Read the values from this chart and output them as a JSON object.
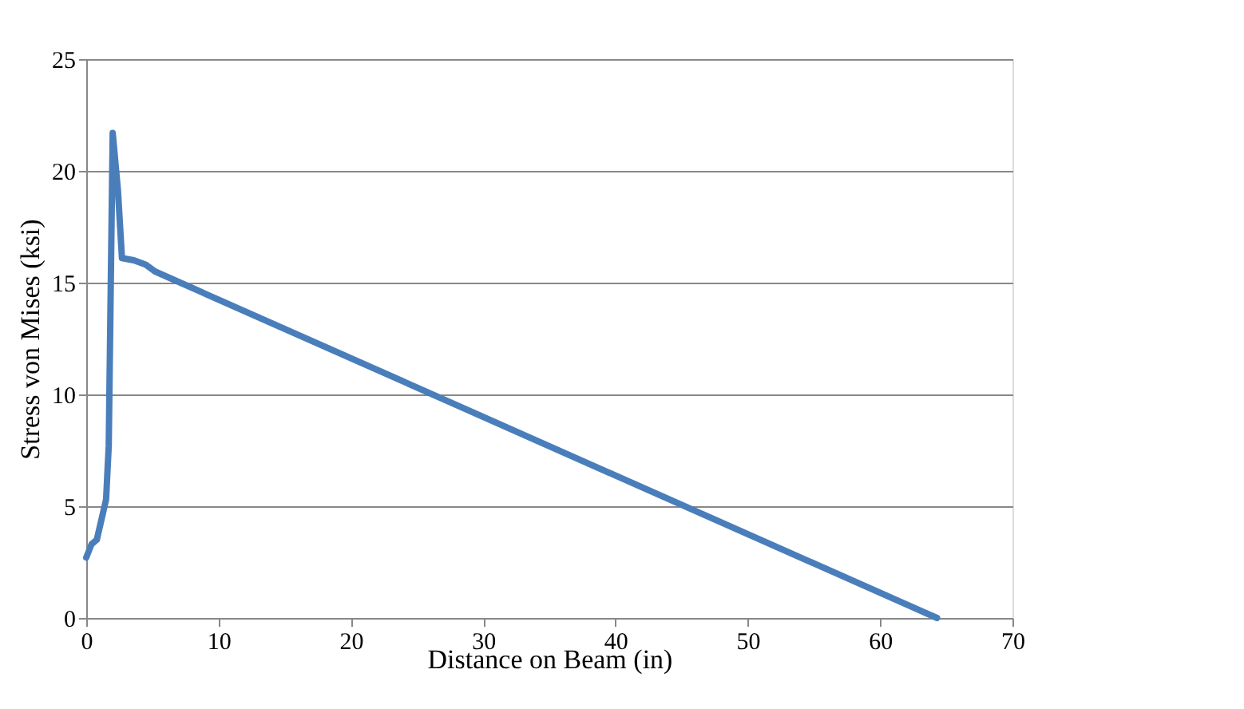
{
  "chart_data": {
    "type": "line",
    "xlabel": "Distance on Beam (in)",
    "ylabel": "Stress von Mises (ksi)",
    "x": [
      0,
      0.4,
      0.8,
      1.5,
      1.7,
      2.0,
      2.4,
      2.7,
      3.6,
      4.5,
      5.2,
      64.3
    ],
    "series": [
      {
        "color": "#4a7ebb",
        "values": [
          2.7,
          3.3,
          3.5,
          5.3,
          7.7,
          21.7,
          19.1,
          16.1,
          16.0,
          15.8,
          15.5,
          0
        ]
      }
    ],
    "xlim": [
      0,
      70
    ],
    "xticks": [
      0,
      10,
      20,
      30,
      40,
      50,
      60,
      70
    ],
    "ylim": [
      0,
      25
    ],
    "yticks": [
      0,
      5,
      10,
      15,
      20,
      25
    ],
    "grid": "y",
    "marker": "none",
    "line_style": "solid"
  }
}
